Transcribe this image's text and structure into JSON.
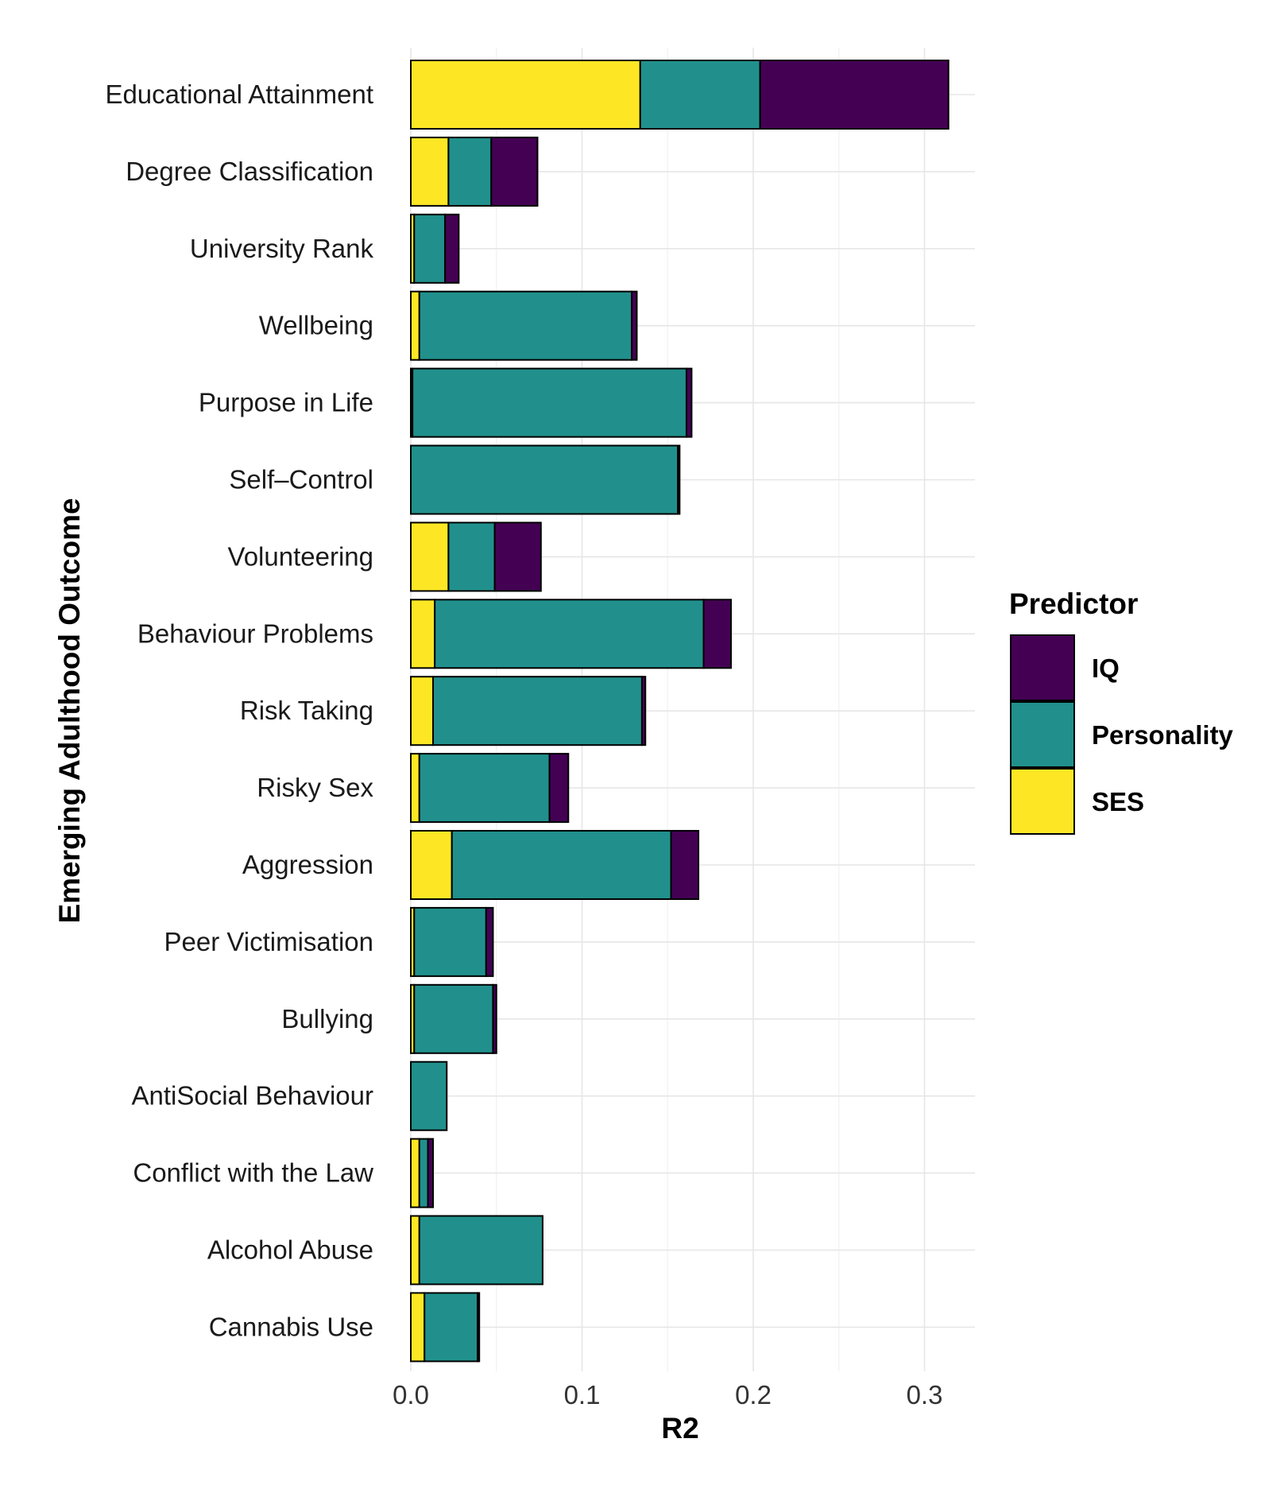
{
  "chart_data": {
    "type": "bar",
    "orientation": "horizontal",
    "stacked": true,
    "xlabel": "R2",
    "ylabel": "Emerging Adulthood Outcome",
    "xlim": [
      0,
      0.33
    ],
    "x_ticks": [
      0.0,
      0.1,
      0.2,
      0.3
    ],
    "x_tick_labels": [
      "0.0",
      "0.1",
      "0.2",
      "0.3"
    ],
    "grid": true,
    "legend_title": "Predictor",
    "legend_position": "right",
    "legend_entries": [
      "IQ",
      "Personality",
      "SES"
    ],
    "categories": [
      "Educational Attainment",
      "Degree Classification",
      "University Rank",
      "Wellbeing",
      "Purpose in Life",
      "Self–Control",
      "Volunteering",
      "Behaviour Problems",
      "Risk Taking",
      "Risky Sex",
      "Aggression",
      "Peer Victimisation",
      "Bullying",
      "AntiSocial Behaviour",
      "Conflict with the Law",
      "Alcohol Abuse",
      "Cannabis Use"
    ],
    "series": [
      {
        "name": "SES",
        "color": "#FDE725",
        "values": [
          0.134,
          0.022,
          0.002,
          0.005,
          0.001,
          0.0,
          0.022,
          0.014,
          0.013,
          0.005,
          0.024,
          0.002,
          0.002,
          0.0,
          0.005,
          0.005,
          0.008
        ]
      },
      {
        "name": "Personality",
        "color": "#21908C",
        "values": [
          0.07,
          0.025,
          0.018,
          0.124,
          0.16,
          0.156,
          0.027,
          0.157,
          0.122,
          0.076,
          0.128,
          0.042,
          0.046,
          0.021,
          0.005,
          0.072,
          0.031
        ]
      },
      {
        "name": "IQ",
        "color": "#440154",
        "values": [
          0.11,
          0.027,
          0.008,
          0.003,
          0.003,
          0.001,
          0.027,
          0.016,
          0.002,
          0.011,
          0.016,
          0.004,
          0.002,
          0.0,
          0.003,
          0.0,
          0.001
        ]
      }
    ]
  }
}
